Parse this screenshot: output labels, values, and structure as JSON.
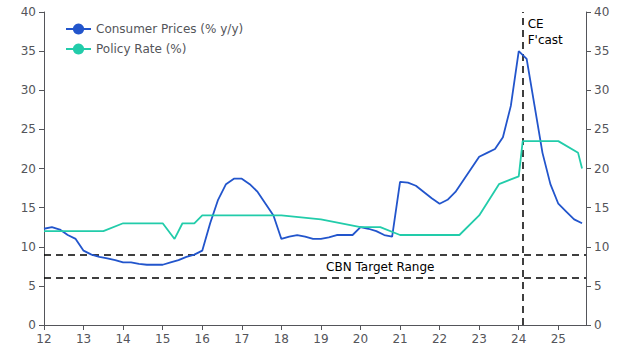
{
  "chart_data": {
    "type": "line",
    "series": [
      {
        "name": "Consumer Prices (% y/y)",
        "color": "#2255cc",
        "x": [
          12.0,
          12.2,
          12.4,
          12.6,
          12.8,
          13.0,
          13.2,
          13.4,
          13.6,
          13.8,
          14.0,
          14.2,
          14.4,
          14.6,
          14.8,
          15.0,
          15.2,
          15.4,
          15.6,
          15.8,
          16.0,
          16.2,
          16.4,
          16.6,
          16.8,
          17.0,
          17.2,
          17.4,
          17.6,
          17.8,
          18.0,
          18.2,
          18.4,
          18.6,
          18.8,
          19.0,
          19.2,
          19.4,
          19.6,
          19.8,
          20.0,
          20.2,
          20.4,
          20.6,
          20.8,
          21.0,
          21.2,
          21.4,
          21.6,
          21.8,
          22.0,
          22.2,
          22.4,
          22.6,
          22.8,
          23.0,
          23.2,
          23.4,
          23.6,
          23.8,
          24.0,
          24.2,
          24.4,
          24.6,
          24.8,
          25.0,
          25.2,
          25.4,
          25.6
        ],
        "values": [
          12.3,
          12.5,
          12.2,
          11.5,
          11.0,
          9.5,
          9.0,
          8.7,
          8.5,
          8.3,
          8.0,
          8.0,
          7.8,
          7.7,
          7.7,
          7.7,
          8.0,
          8.3,
          8.7,
          9.0,
          9.5,
          13.0,
          16.0,
          18.0,
          18.7,
          18.7,
          18.0,
          17.0,
          15.5,
          14.0,
          11.0,
          11.3,
          11.5,
          11.3,
          11.0,
          11.0,
          11.2,
          11.5,
          11.5,
          11.5,
          12.5,
          12.3,
          12.0,
          11.5,
          11.3,
          18.3,
          18.2,
          17.8,
          17.0,
          16.2,
          15.5,
          16.0,
          17.0,
          18.5,
          20.0,
          21.5,
          22.0,
          22.5,
          24.0,
          28.0,
          35.0,
          34.0,
          28.0,
          22.0,
          18.0,
          15.5,
          14.5,
          13.5,
          13.0
        ]
      },
      {
        "name": "Policy Rate (%)",
        "color": "#22ccaa",
        "x": [
          12.0,
          12.5,
          13.0,
          13.5,
          14.0,
          14.5,
          15.0,
          15.3,
          15.5,
          15.8,
          16.0,
          16.5,
          17.0,
          18.0,
          19.0,
          20.0,
          20.5,
          21.0,
          22.0,
          22.5,
          23.0,
          23.5,
          24.0,
          24.1,
          24.5,
          25.0,
          25.5,
          25.6
        ],
        "values": [
          12.0,
          12.0,
          12.0,
          12.0,
          13.0,
          13.0,
          13.0,
          11.0,
          13.0,
          13.0,
          14.0,
          14.0,
          14.0,
          14.0,
          13.5,
          12.5,
          12.5,
          11.5,
          11.5,
          11.5,
          14.0,
          18.0,
          19.0,
          23.5,
          23.5,
          23.5,
          22.0,
          20.0
        ]
      }
    ],
    "reference_lines": [
      {
        "axis": "y",
        "value": 9.0,
        "line_style": "dashed",
        "color": "#000000"
      },
      {
        "axis": "y",
        "value": 6.0,
        "line_style": "dashed",
        "color": "#000000"
      },
      {
        "axis": "x",
        "value": 24.1,
        "line_style": "dashed",
        "color": "#000000",
        "label": [
          "CE",
          "F'cast"
        ]
      }
    ],
    "annotations": [
      {
        "text": "CBN Target Range",
        "x": 20.5,
        "y": 7.4
      }
    ],
    "xlim": [
      12,
      25.7
    ],
    "xticks": [
      12,
      13,
      14,
      15,
      16,
      17,
      18,
      19,
      20,
      21,
      22,
      23,
      24,
      25
    ],
    "ylim": [
      0,
      40
    ],
    "yticks": [
      0,
      5,
      10,
      15,
      20,
      25,
      30,
      35,
      40
    ],
    "y2lim": [
      0,
      40
    ],
    "y2ticks": [
      0,
      5,
      10,
      15,
      20,
      25,
      30,
      35,
      40
    ],
    "grid": false,
    "legend": "upper left"
  }
}
